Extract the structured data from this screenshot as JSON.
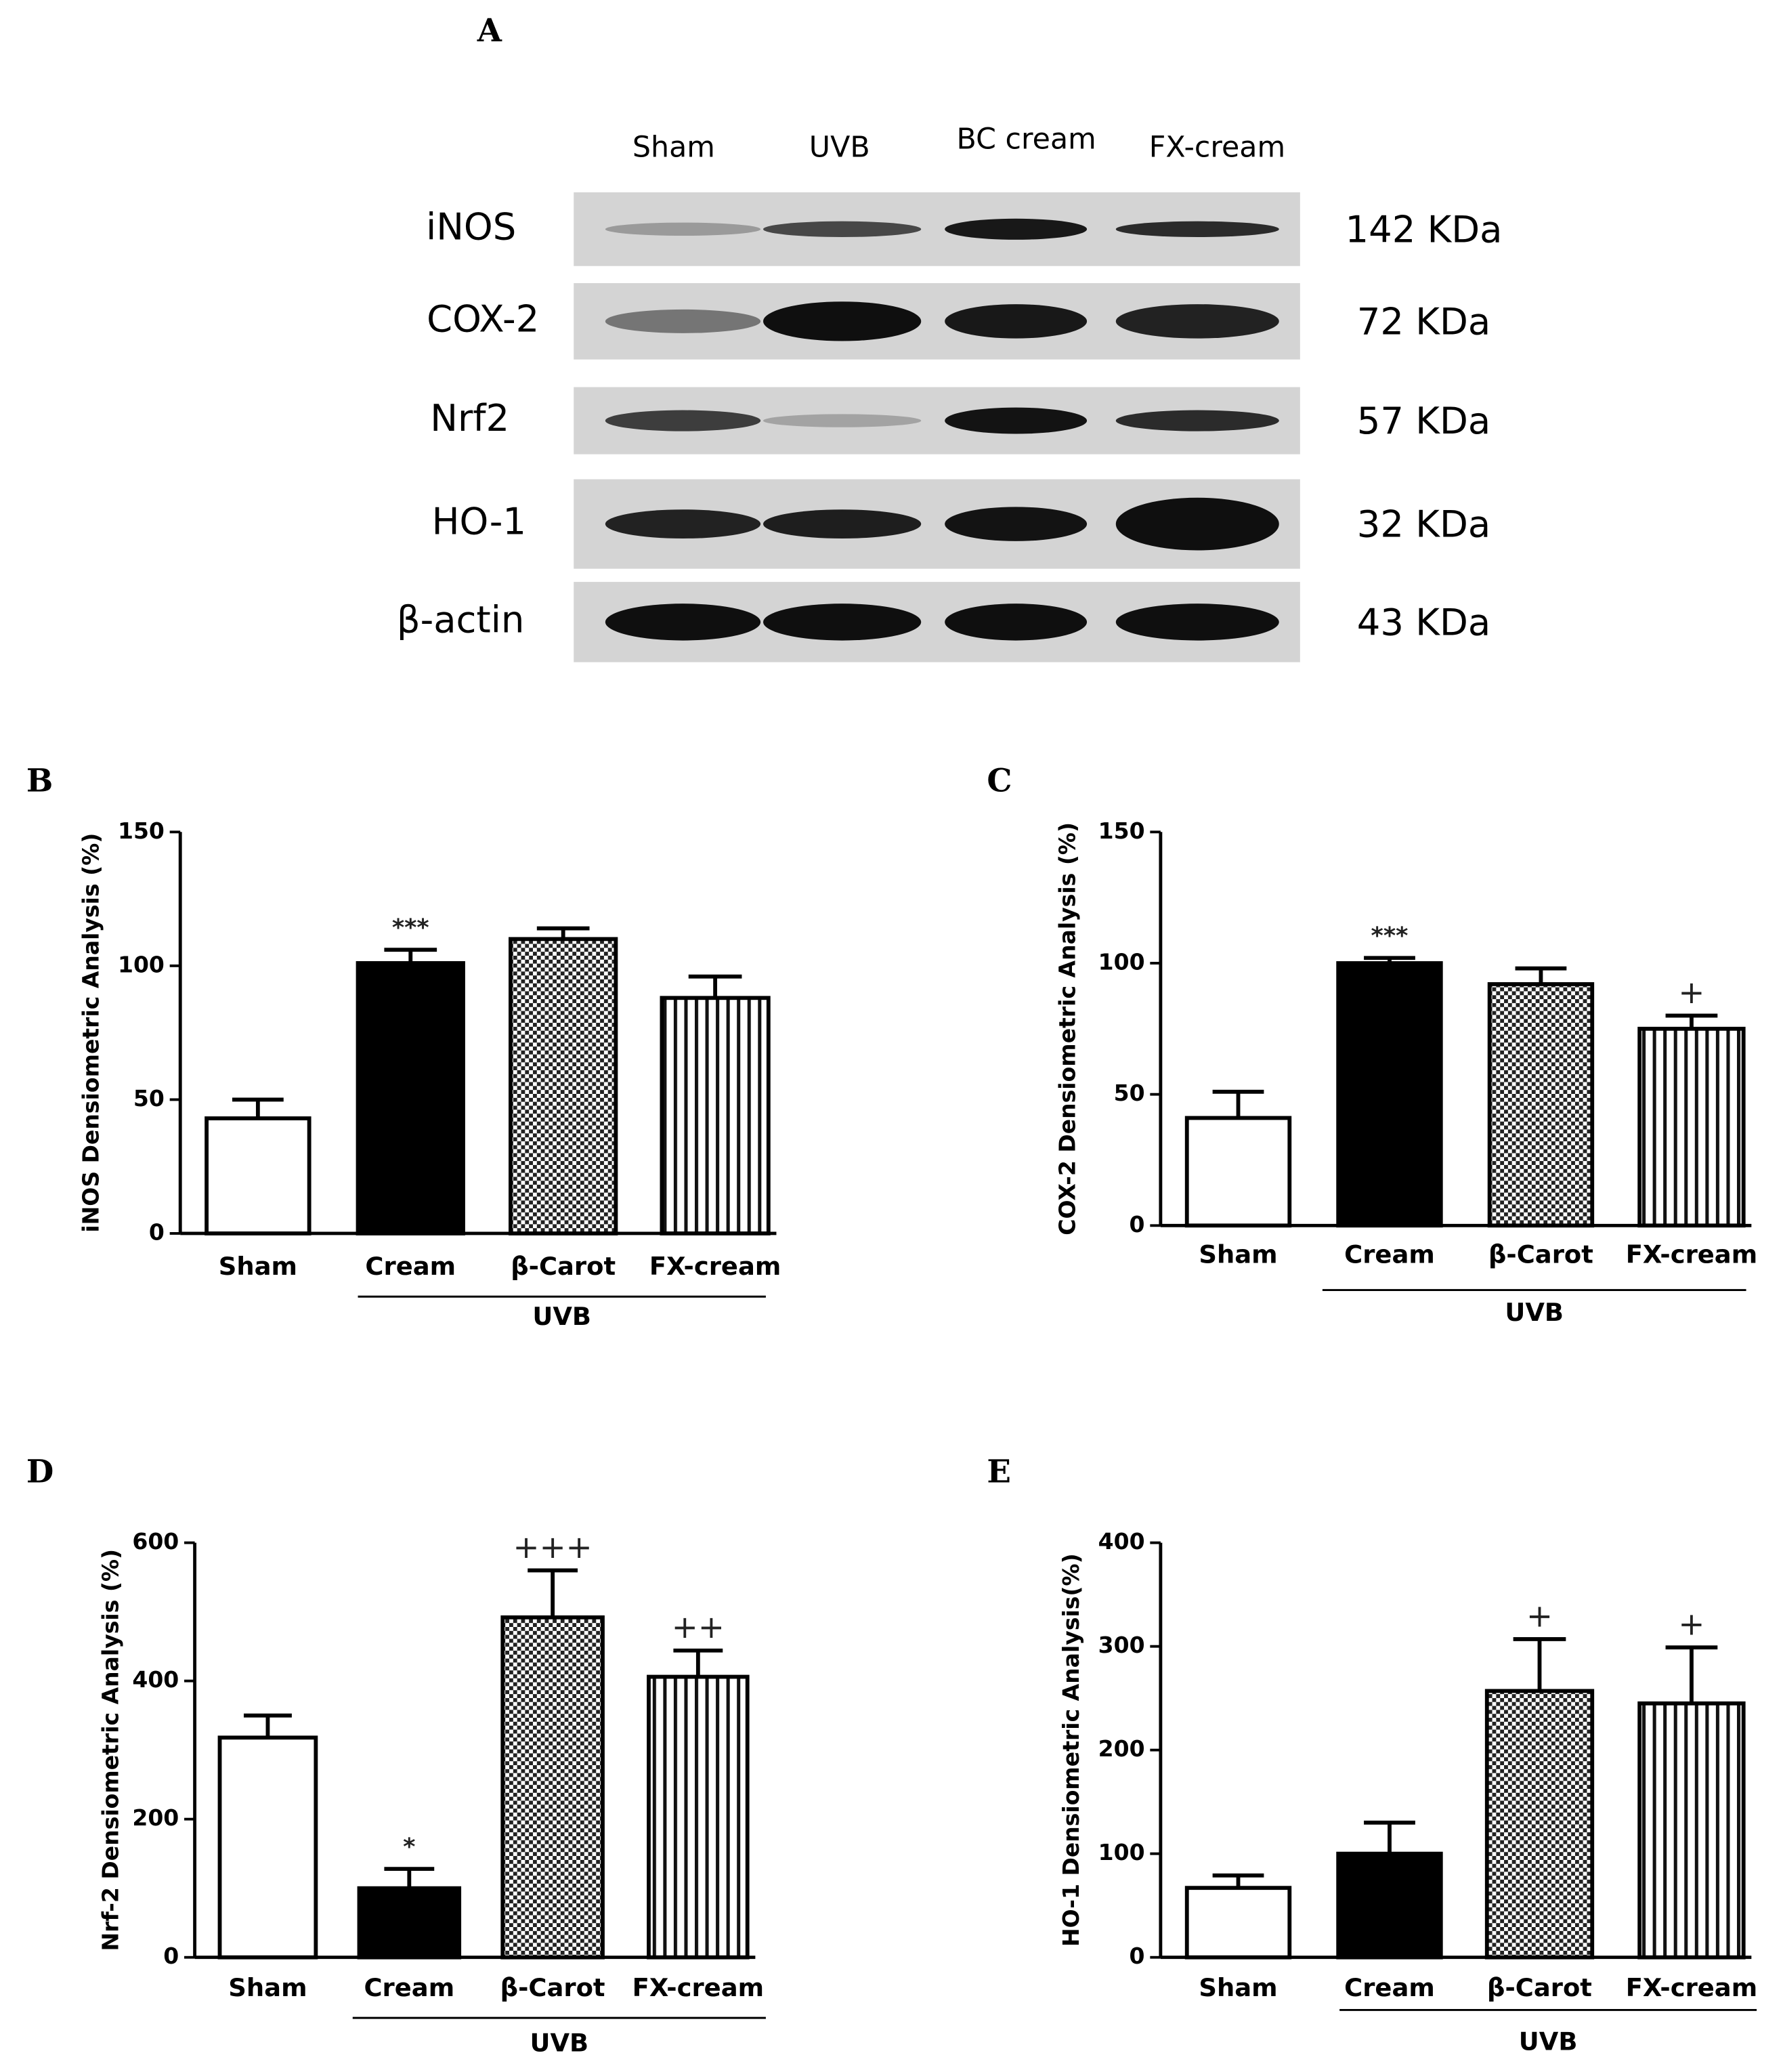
{
  "blot": {
    "panel": "A",
    "lanes": [
      "Sham",
      "UVB",
      "BC cream",
      "FX-cream"
    ],
    "proteins": [
      {
        "name": "iNOS",
        "size": "142 KDa"
      },
      {
        "name": "COX-2",
        "size": "72 KDa"
      },
      {
        "name": "Nrf2",
        "size": "57 KDa"
      },
      {
        "name": "HO-1",
        "size": "32 KDa"
      },
      {
        "name": "β-actin",
        "size": "43 KDa"
      }
    ]
  },
  "chart_data": [
    {
      "type": "bar",
      "panel": "B",
      "ylabel": "iNOS Densiometric Analysis (%)",
      "categories": [
        "Sham",
        "Cream",
        "β-Carot",
        "FX-cream"
      ],
      "values": [
        43,
        101,
        110,
        88
      ],
      "errors": [
        7,
        5,
        4,
        8
      ],
      "annotations": [
        null,
        "***",
        null,
        null
      ],
      "group_label": "UVB",
      "ylim": [
        0,
        150
      ],
      "yticks": [
        0,
        50,
        100,
        150
      ],
      "fills": [
        "white",
        "black",
        "checker",
        "vertical"
      ]
    },
    {
      "type": "bar",
      "panel": "C",
      "ylabel": "COX-2 Densiometric Analysis (%)",
      "categories": [
        "Sham",
        "Cream",
        "β-Carot",
        "FX-cream"
      ],
      "values": [
        41,
        100,
        92,
        75
      ],
      "errors": [
        10,
        2,
        6,
        5
      ],
      "annotations": [
        null,
        "***",
        null,
        "+"
      ],
      "group_label": "UVB",
      "ylim": [
        0,
        150
      ],
      "yticks": [
        0,
        50,
        100,
        150
      ],
      "fills": [
        "white",
        "black",
        "checker",
        "vertical"
      ]
    },
    {
      "type": "bar",
      "panel": "D",
      "ylabel": "Nrf-2 Densiometric Analysis (%)",
      "categories": [
        "Sham",
        "Cream",
        "β-Carot",
        "FX-cream"
      ],
      "values": [
        318,
        100,
        492,
        406
      ],
      "errors": [
        32,
        28,
        68,
        38
      ],
      "annotations": [
        null,
        "*",
        "+++",
        "++"
      ],
      "group_label": "UVB",
      "ylim": [
        0,
        600
      ],
      "yticks": [
        0,
        200,
        400,
        600
      ],
      "fills": [
        "white",
        "black",
        "checker",
        "vertical"
      ]
    },
    {
      "type": "bar",
      "panel": "E",
      "ylabel": "HO-1 Densiometric Analysis(%)",
      "categories": [
        "Sham",
        "Cream",
        "β-Carot",
        "FX-cream"
      ],
      "values": [
        67,
        100,
        257,
        245
      ],
      "errors": [
        12,
        30,
        50,
        54
      ],
      "annotations": [
        null,
        null,
        "+",
        "+"
      ],
      "group_label": "UVB",
      "ylim": [
        0,
        400
      ],
      "yticks": [
        0,
        100,
        200,
        300,
        400
      ],
      "fills": [
        "white",
        "black",
        "checker",
        "vertical"
      ]
    }
  ]
}
